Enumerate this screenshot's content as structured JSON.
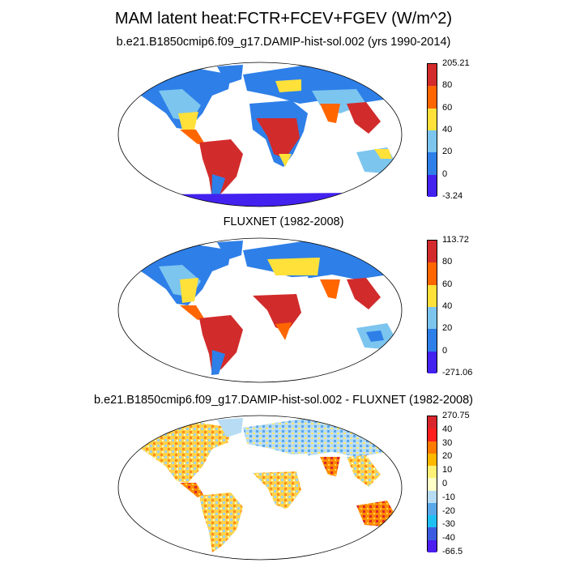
{
  "title": "MAM latent heat:FCTR+FCEV+FGEV (W/m^2)",
  "panels": [
    {
      "title": "b.e21.B1850cmip6.f09_g17.DAMIP-hist-sol.002 (yrs 1990-2014)",
      "colorbar": {
        "labels": [
          "205.21",
          "80",
          "60",
          "40",
          "20",
          "0",
          "-3.24"
        ],
        "colors": [
          "#d22b2b",
          "#ff6600",
          "#ffe13a",
          "#7cc5ef",
          "#2e7fe8",
          "#4322f0"
        ]
      }
    },
    {
      "title": "FLUXNET (1982-2008)",
      "colorbar": {
        "labels": [
          "113.72",
          "80",
          "60",
          "40",
          "20",
          "0",
          "-271.06"
        ],
        "colors": [
          "#d22b2b",
          "#ff6600",
          "#ffe13a",
          "#7cc5ef",
          "#2e7fe8",
          "#4322f0"
        ]
      }
    },
    {
      "title": "b.e21.B1850cmip6.f09_g17.DAMIP-hist-sol.002 - FLUXNET (1982-2008)",
      "colorbar": {
        "labels": [
          "270.75",
          "40",
          "30",
          "20",
          "10",
          "0",
          "-10",
          "-20",
          "-30",
          "-40",
          "-66.5"
        ],
        "colors": [
          "#d9262c",
          "#ff1e1e",
          "#ff7a00",
          "#ffb800",
          "#fff176",
          "#ffffc8",
          "#b8dcf4",
          "#5aa8ea",
          "#1ec0f4",
          "#3b5ce0",
          "#4c1ef0"
        ]
      }
    }
  ]
}
